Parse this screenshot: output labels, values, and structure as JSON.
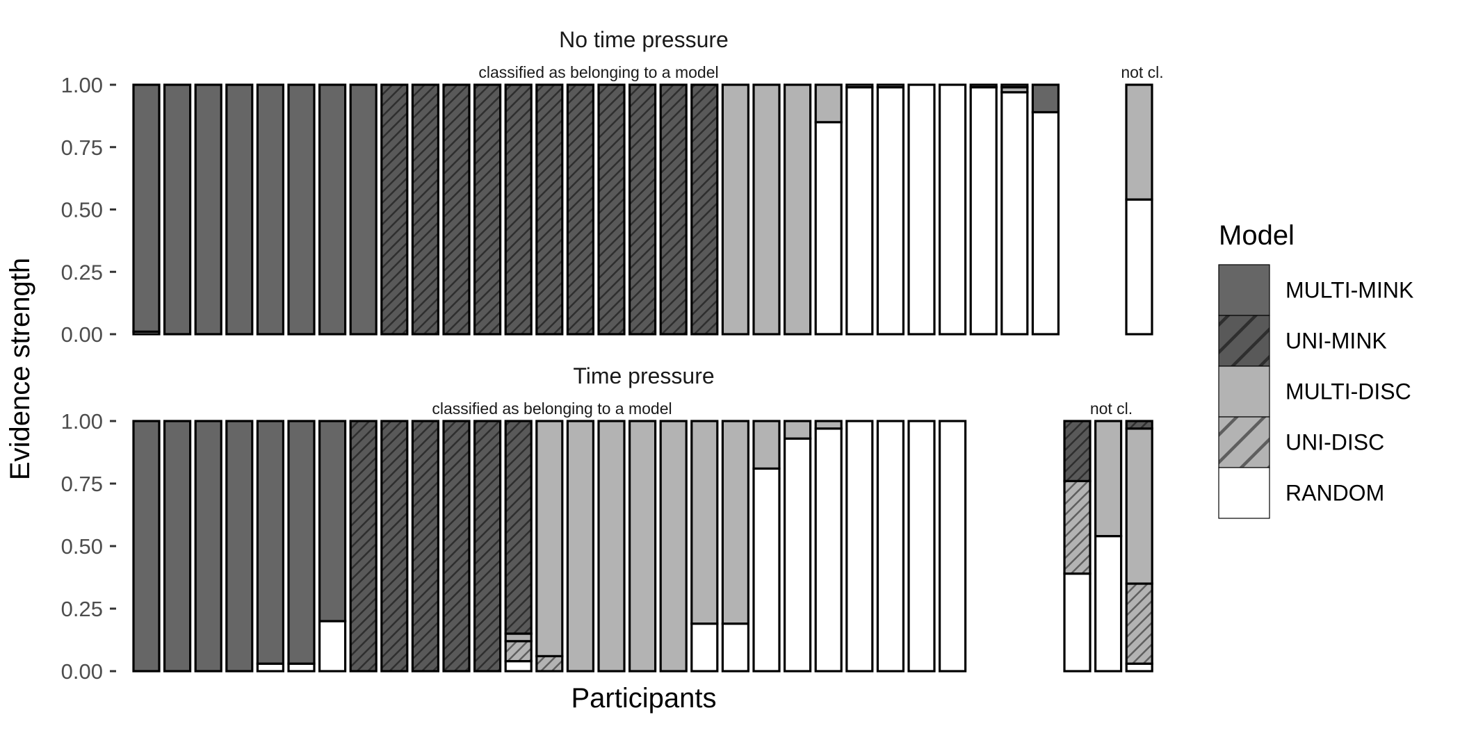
{
  "chart_data": {
    "type": "bar",
    "stacked": true,
    "xlabel": "Participants",
    "ylabel": "Evidence strength",
    "ylim": [
      0,
      1
    ],
    "yticks": [
      "0.00",
      "0.25",
      "0.50",
      "0.75",
      "1.00"
    ],
    "models": [
      "MULTI-MINK",
      "UNI-MINK",
      "MULTI-DISC",
      "UNI-DISC",
      "RANDOM"
    ],
    "stack_order_bottom_to_top": [
      "RANDOM",
      "UNI-DISC",
      "MULTI-DISC",
      "UNI-MINK",
      "MULTI-MINK"
    ],
    "colors": {
      "MULTI-MINK": "#666666",
      "UNI-MINK": "#595959",
      "MULTI-DISC": "#b3b3b3",
      "UNI-DISC": "#b3b3b3",
      "RANDOM": "#ffffff"
    },
    "hatched": [
      "UNI-MINK",
      "UNI-DISC"
    ],
    "legend": {
      "title": "Model",
      "position": "right"
    },
    "panels": [
      {
        "title": "No time pressure",
        "facets": [
          {
            "label": "classified as belonging to a model",
            "bars": [
              {
                "RANDOM": 0.01,
                "MULTI-MINK": 0.99
              },
              {
                "MULTI-MINK": 1.0
              },
              {
                "MULTI-MINK": 1.0
              },
              {
                "MULTI-MINK": 1.0
              },
              {
                "MULTI-MINK": 1.0
              },
              {
                "MULTI-MINK": 1.0
              },
              {
                "MULTI-MINK": 1.0
              },
              {
                "MULTI-MINK": 1.0
              },
              {
                "UNI-MINK": 1.0
              },
              {
                "UNI-MINK": 1.0
              },
              {
                "UNI-MINK": 1.0
              },
              {
                "UNI-MINK": 1.0
              },
              {
                "UNI-MINK": 1.0
              },
              {
                "UNI-MINK": 1.0
              },
              {
                "UNI-MINK": 1.0
              },
              {
                "UNI-MINK": 1.0
              },
              {
                "UNI-MINK": 1.0
              },
              {
                "UNI-MINK": 1.0
              },
              {
                "UNI-MINK": 1.0
              },
              {
                "MULTI-DISC": 1.0
              },
              {
                "MULTI-DISC": 1.0
              },
              {
                "MULTI-DISC": 1.0
              },
              {
                "RANDOM": 0.85,
                "MULTI-DISC": 0.15
              },
              {
                "RANDOM": 0.99,
                "MULTI-DISC": 0.01
              },
              {
                "RANDOM": 0.99,
                "MULTI-DISC": 0.01
              },
              {
                "RANDOM": 1.0
              },
              {
                "RANDOM": 1.0
              },
              {
                "RANDOM": 0.99,
                "MULTI-MINK": 0.01
              },
              {
                "RANDOM": 0.97,
                "MULTI-DISC": 0.02,
                "MULTI-MINK": 0.01
              },
              {
                "RANDOM": 0.89,
                "MULTI-MINK": 0.11
              }
            ]
          },
          {
            "label": "not cl.",
            "bars": [
              {
                "RANDOM": 0.54,
                "MULTI-DISC": 0.46
              }
            ]
          }
        ]
      },
      {
        "title": "Time pressure",
        "facets": [
          {
            "label": "classified as belonging to a model",
            "bars": [
              {
                "MULTI-MINK": 1.0
              },
              {
                "MULTI-MINK": 1.0
              },
              {
                "MULTI-MINK": 1.0
              },
              {
                "MULTI-MINK": 1.0
              },
              {
                "RANDOM": 0.03,
                "MULTI-MINK": 0.97
              },
              {
                "RANDOM": 0.03,
                "MULTI-MINK": 0.97
              },
              {
                "RANDOM": 0.2,
                "MULTI-MINK": 0.8
              },
              {
                "UNI-MINK": 1.0
              },
              {
                "UNI-MINK": 1.0
              },
              {
                "UNI-MINK": 1.0
              },
              {
                "UNI-MINK": 1.0
              },
              {
                "UNI-MINK": 1.0
              },
              {
                "RANDOM": 0.04,
                "UNI-DISC": 0.08,
                "MULTI-DISC": 0.03,
                "UNI-MINK": 0.85
              },
              {
                "UNI-DISC": 0.06,
                "MULTI-DISC": 0.94
              },
              {
                "MULTI-DISC": 1.0
              },
              {
                "MULTI-DISC": 1.0
              },
              {
                "MULTI-DISC": 1.0
              },
              {
                "MULTI-DISC": 1.0
              },
              {
                "RANDOM": 0.19,
                "MULTI-DISC": 0.81
              },
              {
                "RANDOM": 0.19,
                "MULTI-DISC": 0.81
              },
              {
                "RANDOM": 0.81,
                "MULTI-DISC": 0.19
              },
              {
                "RANDOM": 0.93,
                "MULTI-DISC": 0.07
              },
              {
                "RANDOM": 0.97,
                "MULTI-DISC": 0.03
              },
              {
                "RANDOM": 1.0
              },
              {
                "RANDOM": 1.0
              },
              {
                "RANDOM": 1.0
              },
              {
                "RANDOM": 1.0
              }
            ]
          },
          {
            "label": "not cl.",
            "bars": [
              {
                "RANDOM": 0.39,
                "UNI-DISC": 0.37,
                "UNI-MINK": 0.24
              },
              {
                "RANDOM": 0.54,
                "MULTI-DISC": 0.46
              },
              {
                "RANDOM": 0.03,
                "UNI-DISC": 0.32,
                "MULTI-DISC": 0.62,
                "UNI-MINK": 0.03
              }
            ]
          }
        ]
      }
    ]
  }
}
